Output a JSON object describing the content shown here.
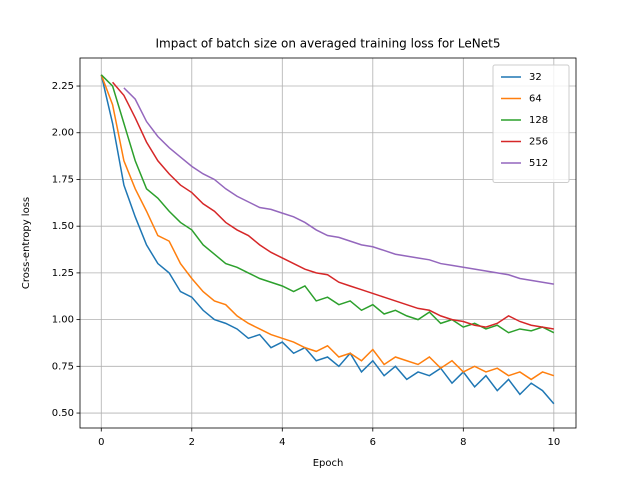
{
  "chart_data": {
    "type": "line",
    "title": "Impact of batch size on averaged training loss for LeNet5",
    "x_label": "Epoch",
    "y_label": "Cross-entropy loss",
    "x": [
      0,
      0.25,
      0.5,
      0.75,
      1,
      1.25,
      1.5,
      1.75,
      2,
      2.25,
      2.5,
      2.75,
      3,
      3.25,
      3.5,
      3.75,
      4,
      4.25,
      4.5,
      4.75,
      5,
      5.25,
      5.5,
      5.75,
      6,
      6.25,
      6.5,
      6.75,
      7,
      7.25,
      7.5,
      7.75,
      8,
      8.25,
      8.5,
      8.75,
      9,
      9.25,
      9.5,
      9.75,
      10
    ],
    "series": [
      {
        "name": "32",
        "color": "#1f77b4",
        "values": [
          2.31,
          2.05,
          1.72,
          1.55,
          1.4,
          1.3,
          1.25,
          1.15,
          1.12,
          1.05,
          1.0,
          0.98,
          0.95,
          0.9,
          0.92,
          0.85,
          0.88,
          0.82,
          0.85,
          0.78,
          0.8,
          0.75,
          0.82,
          0.72,
          0.78,
          0.7,
          0.75,
          0.68,
          0.72,
          0.7,
          0.74,
          0.66,
          0.72,
          0.64,
          0.7,
          0.62,
          0.68,
          0.6,
          0.66,
          0.62,
          0.55
        ]
      },
      {
        "name": "64",
        "color": "#ff7f0e",
        "values": [
          2.31,
          2.15,
          1.85,
          1.7,
          1.58,
          1.45,
          1.42,
          1.3,
          1.22,
          1.15,
          1.1,
          1.08,
          1.02,
          0.98,
          0.95,
          0.92,
          0.9,
          0.88,
          0.85,
          0.83,
          0.86,
          0.8,
          0.82,
          0.78,
          0.84,
          0.76,
          0.8,
          0.78,
          0.76,
          0.8,
          0.74,
          0.78,
          0.72,
          0.75,
          0.72,
          0.74,
          0.7,
          0.72,
          0.68,
          0.72,
          0.7
        ]
      },
      {
        "name": "128",
        "color": "#2ca02c",
        "values": [
          2.31,
          2.25,
          2.05,
          1.85,
          1.7,
          1.65,
          1.58,
          1.52,
          1.48,
          1.4,
          1.35,
          1.3,
          1.28,
          1.25,
          1.22,
          1.2,
          1.18,
          1.15,
          1.18,
          1.1,
          1.12,
          1.08,
          1.1,
          1.05,
          1.08,
          1.03,
          1.05,
          1.02,
          1.0,
          1.04,
          0.98,
          1.0,
          0.96,
          0.98,
          0.95,
          0.97,
          0.93,
          0.95,
          0.94,
          0.96,
          0.93
        ]
      },
      {
        "name": "256",
        "color": "#d62728",
        "values": [
          null,
          2.27,
          2.2,
          2.08,
          1.95,
          1.85,
          1.78,
          1.72,
          1.68,
          1.62,
          1.58,
          1.52,
          1.48,
          1.45,
          1.4,
          1.36,
          1.33,
          1.3,
          1.27,
          1.25,
          1.24,
          1.2,
          1.18,
          1.16,
          1.14,
          1.12,
          1.1,
          1.08,
          1.06,
          1.05,
          1.02,
          1.0,
          0.99,
          0.97,
          0.96,
          0.98,
          1.02,
          0.99,
          0.97,
          0.96,
          0.95
        ]
      },
      {
        "name": "512",
        "color": "#9467bd",
        "values": [
          null,
          null,
          2.24,
          2.18,
          2.06,
          1.98,
          1.92,
          1.87,
          1.82,
          1.78,
          1.75,
          1.7,
          1.66,
          1.63,
          1.6,
          1.59,
          1.57,
          1.55,
          1.52,
          1.48,
          1.45,
          1.44,
          1.42,
          1.4,
          1.39,
          1.37,
          1.35,
          1.34,
          1.33,
          1.32,
          1.3,
          1.29,
          1.28,
          1.27,
          1.26,
          1.25,
          1.24,
          1.22,
          1.21,
          1.2,
          1.19
        ]
      }
    ],
    "xlim": [
      -0.47,
      10.49
    ],
    "ylim": [
      0.42,
      2.4
    ],
    "xticks": [
      0,
      2,
      4,
      6,
      8,
      10
    ],
    "yticks": [
      {
        "value": 0.5,
        "label": "0.50"
      },
      {
        "value": 0.75,
        "label": "0.75"
      },
      {
        "value": 1.0,
        "label": "1.00"
      },
      {
        "value": 1.25,
        "label": "1.25"
      },
      {
        "value": 1.5,
        "label": "1.50"
      },
      {
        "value": 1.75,
        "label": "1.75"
      },
      {
        "value": 2.0,
        "label": "2.00"
      },
      {
        "value": 2.25,
        "label": "2.25"
      }
    ],
    "grid": true,
    "legend": "upper right"
  }
}
